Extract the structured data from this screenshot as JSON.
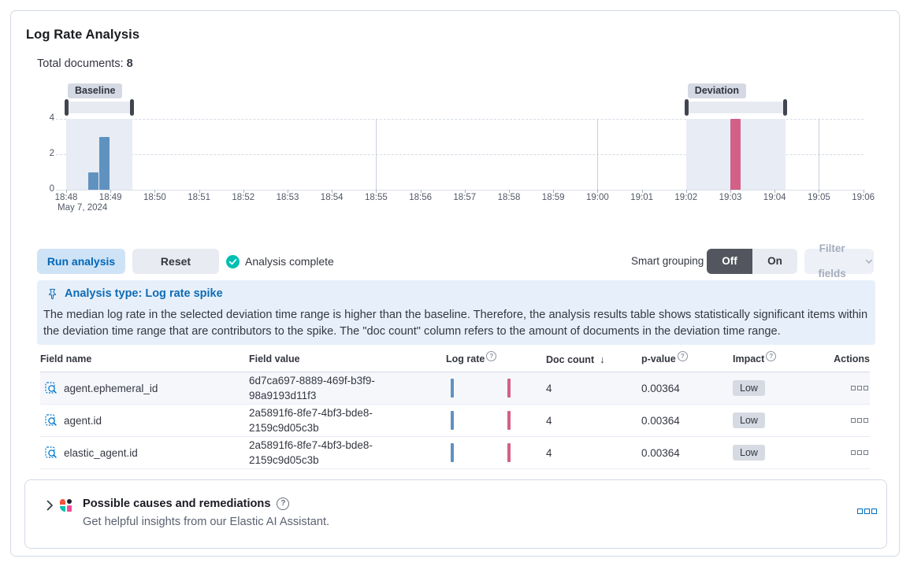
{
  "panel": {
    "title": "Log Rate Analysis",
    "total_documents_label": "Total documents:",
    "total_documents_value": "8"
  },
  "chart_data": {
    "type": "bar",
    "title": "Log rate histogram with baseline and deviation time ranges",
    "x_ticks": [
      "18:48",
      "18:49",
      "18:50",
      "18:51",
      "18:52",
      "18:53",
      "18:54",
      "18:55",
      "18:56",
      "18:57",
      "18:58",
      "18:59",
      "19:00",
      "19:01",
      "19:02",
      "19:03",
      "19:04",
      "19:05",
      "19:06"
    ],
    "x_start_date_label": "May 7, 2024",
    "y_ticks": [
      0,
      2,
      4
    ],
    "ylim": [
      0,
      4
    ],
    "grid_vertical_lines": [
      "18:55",
      "19:00",
      "19:05"
    ],
    "series": [
      {
        "name": "baseline doc count",
        "color": "#6092C0",
        "points": [
          {
            "x": "18:48:30",
            "y": 1
          },
          {
            "x": "18:48:45",
            "y": 3
          }
        ]
      },
      {
        "name": "deviation doc count",
        "color": "#D36086",
        "points": [
          {
            "x": "19:03:00",
            "y": 4
          }
        ]
      }
    ],
    "annotations": {
      "baseline": {
        "label": "Baseline",
        "range": [
          "18:48:00",
          "18:49:30"
        ]
      },
      "deviation": {
        "label": "Deviation",
        "range": [
          "19:02:00",
          "19:04:15"
        ]
      }
    }
  },
  "toolbar": {
    "run_label": "Run analysis",
    "reset_label": "Reset",
    "status_label": "Analysis complete",
    "smart_grouping_label": "Smart grouping",
    "off_label": "Off",
    "on_label": "On",
    "filter_fields_label": "Filter fields"
  },
  "callout": {
    "title": "Analysis type: Log rate spike",
    "body": "The median log rate in the selected deviation time range is higher than the baseline. Therefore, the analysis results table shows statistically significant items within the deviation time range that are contributors to the spike. The \"doc count\" column refers to the amount of documents in the deviation time range."
  },
  "table": {
    "columns": [
      {
        "label": "Field name"
      },
      {
        "label": "Field value"
      },
      {
        "label": "Log rate",
        "info": true
      },
      {
        "label": "Doc count",
        "sort": "desc"
      },
      {
        "label": "p-value",
        "info": true
      },
      {
        "label": "Impact",
        "info": true
      },
      {
        "label": "Actions"
      }
    ],
    "sort_icon": "↓",
    "rows": [
      {
        "field_name": "agent.ephemeral_id",
        "field_value": "6d7ca697-8889-469f-b3f9-98a9193d11f3",
        "doc_count": "4",
        "p_value": "0.00364",
        "impact": "Low"
      },
      {
        "field_name": "agent.id",
        "field_value": "2a5891f6-8fe7-4bf3-bde8-2159c9d05c3b",
        "doc_count": "4",
        "p_value": "0.00364",
        "impact": "Low"
      },
      {
        "field_name": "elastic_agent.id",
        "field_value": "2a5891f6-8fe7-4bf3-bde8-2159c9d05c3b",
        "doc_count": "4",
        "p_value": "0.00364",
        "impact": "Low"
      }
    ]
  },
  "footer": {
    "title": "Possible causes and remediations",
    "subtitle": "Get helpful insights from our Elastic AI Assistant."
  },
  "colors": {
    "primary": "#0071C2",
    "baseline_bar": "#6092C0",
    "deviation_bar": "#D36086",
    "success": "#00BFB3",
    "panel_border": "#D3DAE6",
    "callout_bg": "#E7F0FA",
    "badge_bg": "#D4D9E3"
  }
}
